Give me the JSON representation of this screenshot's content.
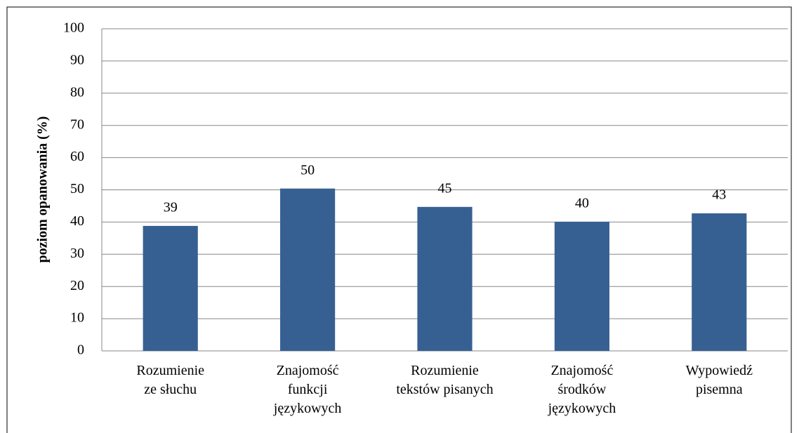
{
  "chart_data": {
    "type": "bar",
    "y_label": "poziom opanowania (%)",
    "categories": [
      "Rozumienie\nze słuchu",
      "Znajomość\nfunkcji\njęzykowych",
      "Rozumienie\ntekstów pisanych",
      "Znajomość\nśrodków\njęzykowych",
      "Wypowiedź\npisemna"
    ],
    "values": [
      38.8,
      50.4,
      44.7,
      40.1,
      42.7
    ],
    "value_labels": [
      "39",
      "50",
      "45",
      "40",
      "43"
    ],
    "color": "#376092",
    "ylim": [
      0,
      100
    ],
    "yticks": [
      0,
      10,
      20,
      30,
      40,
      50,
      60,
      70,
      80,
      90,
      100
    ],
    "grid": true
  }
}
